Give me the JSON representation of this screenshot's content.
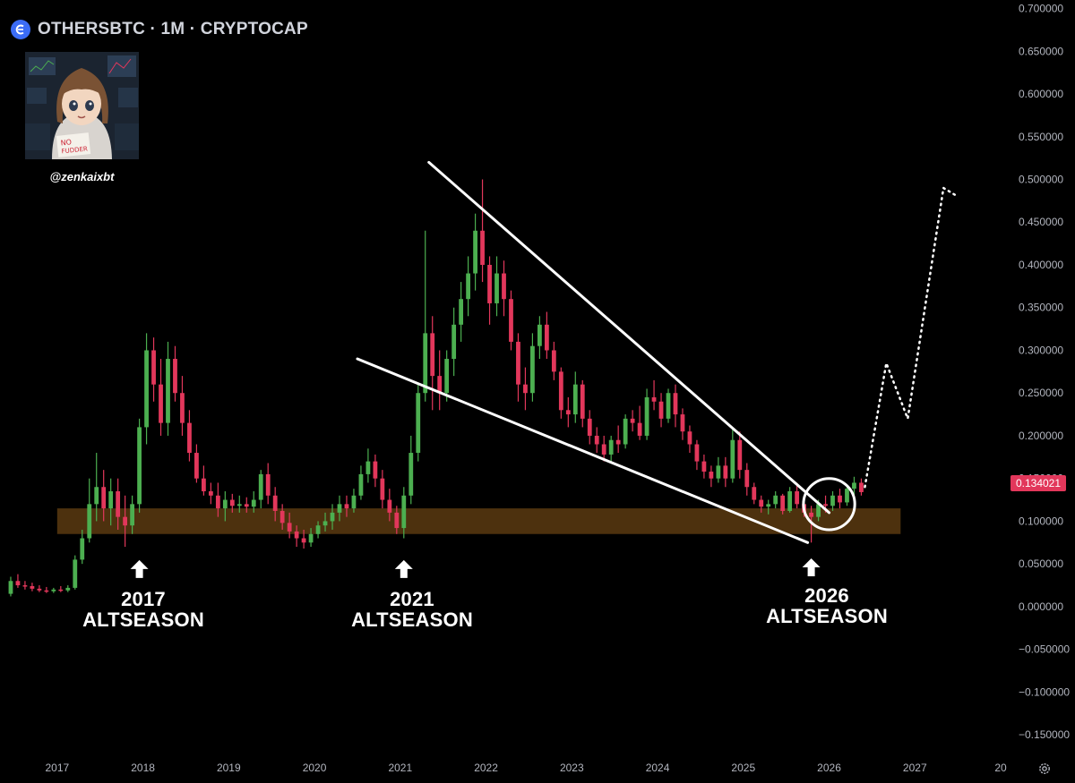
{
  "header": {
    "symbol_title": "OTHERSBTC · 1M · CRYPTOCAP"
  },
  "author": {
    "handle": "@zenkaixbt",
    "avatar_sign_text": "NO FUDDER"
  },
  "annotations": [
    {
      "year": "2017",
      "label": "ALTSEASON"
    },
    {
      "year": "2021",
      "label": "ALTSEASON"
    },
    {
      "year": "2026",
      "label": "ALTSEASON"
    }
  ],
  "price_axis": {
    "ticks": [
      "0.700000",
      "0.650000",
      "0.600000",
      "0.550000",
      "0.500000",
      "0.450000",
      "0.400000",
      "0.350000",
      "0.300000",
      "0.250000",
      "0.200000",
      "0.150000",
      "0.100000",
      "0.050000",
      "0.000000",
      "−0.050000",
      "−0.100000",
      "−0.150000"
    ],
    "current_price_label": "0.134021"
  },
  "time_axis": {
    "ticks": [
      "2017",
      "2018",
      "2019",
      "2020",
      "2021",
      "2022",
      "2023",
      "2024",
      "2025",
      "2026",
      "2027",
      "20"
    ]
  },
  "icons": {
    "logo": "cryptocap-logo-icon",
    "settings": "gear-icon",
    "arrow": "up-arrow-icon"
  },
  "colors": {
    "background": "#000000",
    "up_candle": "#4caf50",
    "down_candle": "#e2375b",
    "support_zone": "#5a3a10",
    "trendline": "#ffffff",
    "price_badge": "#e2375b"
  },
  "chart_data": {
    "type": "candlestick",
    "title": "OTHERSBTC · 1M · CRYPTOCAP",
    "interval": "1M",
    "ylim": [
      -0.175,
      0.71
    ],
    "xlim": [
      "2016-05",
      "2028-02"
    ],
    "candles": [
      [
        "2016-06",
        0.015,
        0.035,
        0.012,
        0.03
      ],
      [
        "2016-07",
        0.03,
        0.038,
        0.022,
        0.025
      ],
      [
        "2016-08",
        0.025,
        0.03,
        0.02,
        0.024
      ],
      [
        "2016-09",
        0.024,
        0.028,
        0.018,
        0.021
      ],
      [
        "2016-10",
        0.021,
        0.025,
        0.017,
        0.019
      ],
      [
        "2016-11",
        0.019,
        0.023,
        0.016,
        0.018
      ],
      [
        "2016-12",
        0.018,
        0.022,
        0.016,
        0.02
      ],
      [
        "2017-01",
        0.02,
        0.024,
        0.017,
        0.019
      ],
      [
        "2017-02",
        0.019,
        0.025,
        0.017,
        0.022
      ],
      [
        "2017-03",
        0.022,
        0.06,
        0.02,
        0.055
      ],
      [
        "2017-04",
        0.055,
        0.09,
        0.05,
        0.08
      ],
      [
        "2017-05",
        0.08,
        0.15,
        0.075,
        0.12
      ],
      [
        "2017-06",
        0.12,
        0.18,
        0.1,
        0.14
      ],
      [
        "2017-07",
        0.14,
        0.16,
        0.1,
        0.115
      ],
      [
        "2017-08",
        0.115,
        0.15,
        0.095,
        0.135
      ],
      [
        "2017-09",
        0.135,
        0.15,
        0.09,
        0.105
      ],
      [
        "2017-10",
        0.105,
        0.13,
        0.07,
        0.095
      ],
      [
        "2017-11",
        0.095,
        0.13,
        0.085,
        0.12
      ],
      [
        "2017-12",
        0.12,
        0.22,
        0.11,
        0.21
      ],
      [
        "2018-01",
        0.21,
        0.32,
        0.19,
        0.3
      ],
      [
        "2018-02",
        0.3,
        0.315,
        0.24,
        0.26
      ],
      [
        "2018-03",
        0.26,
        0.29,
        0.2,
        0.215
      ],
      [
        "2018-04",
        0.215,
        0.31,
        0.2,
        0.29
      ],
      [
        "2018-05",
        0.29,
        0.305,
        0.24,
        0.25
      ],
      [
        "2018-06",
        0.25,
        0.27,
        0.2,
        0.215
      ],
      [
        "2018-07",
        0.215,
        0.23,
        0.17,
        0.18
      ],
      [
        "2018-08",
        0.18,
        0.19,
        0.145,
        0.15
      ],
      [
        "2018-09",
        0.15,
        0.165,
        0.13,
        0.135
      ],
      [
        "2018-10",
        0.135,
        0.145,
        0.12,
        0.13
      ],
      [
        "2018-11",
        0.13,
        0.145,
        0.105,
        0.115
      ],
      [
        "2018-12",
        0.115,
        0.135,
        0.1,
        0.125
      ],
      [
        "2019-01",
        0.125,
        0.132,
        0.11,
        0.118
      ],
      [
        "2019-02",
        0.118,
        0.13,
        0.11,
        0.12
      ],
      [
        "2019-03",
        0.12,
        0.128,
        0.11,
        0.117
      ],
      [
        "2019-04",
        0.117,
        0.135,
        0.11,
        0.125
      ],
      [
        "2019-05",
        0.125,
        0.16,
        0.115,
        0.155
      ],
      [
        "2019-06",
        0.155,
        0.168,
        0.12,
        0.13
      ],
      [
        "2019-07",
        0.13,
        0.14,
        0.1,
        0.112
      ],
      [
        "2019-08",
        0.112,
        0.12,
        0.09,
        0.098
      ],
      [
        "2019-09",
        0.098,
        0.11,
        0.08,
        0.088
      ],
      [
        "2019-10",
        0.088,
        0.095,
        0.07,
        0.08
      ],
      [
        "2019-11",
        0.08,
        0.09,
        0.068,
        0.075
      ],
      [
        "2019-12",
        0.075,
        0.092,
        0.07,
        0.085
      ],
      [
        "2020-01",
        0.085,
        0.1,
        0.08,
        0.095
      ],
      [
        "2020-02",
        0.095,
        0.11,
        0.088,
        0.1
      ],
      [
        "2020-03",
        0.1,
        0.12,
        0.09,
        0.11
      ],
      [
        "2020-04",
        0.11,
        0.13,
        0.1,
        0.12
      ],
      [
        "2020-05",
        0.12,
        0.13,
        0.105,
        0.115
      ],
      [
        "2020-06",
        0.115,
        0.138,
        0.11,
        0.13
      ],
      [
        "2020-07",
        0.13,
        0.165,
        0.125,
        0.155
      ],
      [
        "2020-08",
        0.155,
        0.185,
        0.145,
        0.17
      ],
      [
        "2020-09",
        0.17,
        0.178,
        0.14,
        0.15
      ],
      [
        "2020-10",
        0.15,
        0.16,
        0.115,
        0.125
      ],
      [
        "2020-11",
        0.125,
        0.138,
        0.1,
        0.11
      ],
      [
        "2020-12",
        0.11,
        0.118,
        0.085,
        0.092
      ],
      [
        "2021-01",
        0.092,
        0.14,
        0.08,
        0.13
      ],
      [
        "2021-02",
        0.13,
        0.2,
        0.12,
        0.18
      ],
      [
        "2021-03",
        0.18,
        0.26,
        0.17,
        0.25
      ],
      [
        "2021-04",
        0.25,
        0.44,
        0.24,
        0.32
      ],
      [
        "2021-05",
        0.32,
        0.34,
        0.23,
        0.27
      ],
      [
        "2021-06",
        0.27,
        0.3,
        0.23,
        0.25
      ],
      [
        "2021-07",
        0.25,
        0.3,
        0.24,
        0.29
      ],
      [
        "2021-08",
        0.29,
        0.35,
        0.27,
        0.33
      ],
      [
        "2021-09",
        0.33,
        0.38,
        0.31,
        0.36
      ],
      [
        "2021-10",
        0.36,
        0.41,
        0.34,
        0.39
      ],
      [
        "2021-11",
        0.39,
        0.46,
        0.37,
        0.44
      ],
      [
        "2021-12",
        0.44,
        0.5,
        0.38,
        0.4
      ],
      [
        "2022-01",
        0.4,
        0.41,
        0.33,
        0.355
      ],
      [
        "2022-02",
        0.355,
        0.41,
        0.34,
        0.39
      ],
      [
        "2022-03",
        0.39,
        0.405,
        0.34,
        0.36
      ],
      [
        "2022-04",
        0.36,
        0.37,
        0.3,
        0.31
      ],
      [
        "2022-05",
        0.31,
        0.32,
        0.24,
        0.26
      ],
      [
        "2022-06",
        0.26,
        0.28,
        0.23,
        0.25
      ],
      [
        "2022-07",
        0.25,
        0.32,
        0.24,
        0.305
      ],
      [
        "2022-08",
        0.305,
        0.34,
        0.29,
        0.33
      ],
      [
        "2022-09",
        0.33,
        0.345,
        0.29,
        0.3
      ],
      [
        "2022-10",
        0.3,
        0.31,
        0.265,
        0.275
      ],
      [
        "2022-11",
        0.275,
        0.28,
        0.22,
        0.23
      ],
      [
        "2022-12",
        0.23,
        0.245,
        0.21,
        0.225
      ],
      [
        "2023-01",
        0.225,
        0.275,
        0.215,
        0.26
      ],
      [
        "2023-02",
        0.26,
        0.265,
        0.21,
        0.22
      ],
      [
        "2023-03",
        0.22,
        0.23,
        0.19,
        0.2
      ],
      [
        "2023-04",
        0.2,
        0.21,
        0.18,
        0.19
      ],
      [
        "2023-05",
        0.19,
        0.2,
        0.17,
        0.178
      ],
      [
        "2023-06",
        0.178,
        0.2,
        0.17,
        0.195
      ],
      [
        "2023-07",
        0.195,
        0.212,
        0.18,
        0.19
      ],
      [
        "2023-08",
        0.19,
        0.225,
        0.185,
        0.22
      ],
      [
        "2023-09",
        0.22,
        0.23,
        0.205,
        0.215
      ],
      [
        "2023-10",
        0.215,
        0.235,
        0.195,
        0.2
      ],
      [
        "2023-11",
        0.2,
        0.255,
        0.195,
        0.245
      ],
      [
        "2023-12",
        0.245,
        0.265,
        0.23,
        0.24
      ],
      [
        "2024-01",
        0.24,
        0.25,
        0.21,
        0.22
      ],
      [
        "2024-02",
        0.22,
        0.255,
        0.215,
        0.25
      ],
      [
        "2024-03",
        0.25,
        0.26,
        0.21,
        0.225
      ],
      [
        "2024-04",
        0.225,
        0.232,
        0.195,
        0.205
      ],
      [
        "2024-05",
        0.205,
        0.212,
        0.18,
        0.19
      ],
      [
        "2024-06",
        0.19,
        0.195,
        0.16,
        0.17
      ],
      [
        "2024-07",
        0.17,
        0.178,
        0.15,
        0.158
      ],
      [
        "2024-08",
        0.158,
        0.165,
        0.14,
        0.15
      ],
      [
        "2024-09",
        0.15,
        0.175,
        0.145,
        0.165
      ],
      [
        "2024-10",
        0.165,
        0.175,
        0.14,
        0.15
      ],
      [
        "2024-11",
        0.15,
        0.21,
        0.145,
        0.195
      ],
      [
        "2024-12",
        0.195,
        0.205,
        0.15,
        0.16
      ],
      [
        "2025-01",
        0.16,
        0.168,
        0.13,
        0.14
      ],
      [
        "2025-02",
        0.14,
        0.145,
        0.12,
        0.125
      ],
      [
        "2025-03",
        0.125,
        0.13,
        0.11,
        0.117
      ],
      [
        "2025-04",
        0.117,
        0.125,
        0.108,
        0.12
      ],
      [
        "2025-05",
        0.12,
        0.135,
        0.115,
        0.13
      ],
      [
        "2025-06",
        0.13,
        0.132,
        0.108,
        0.112
      ],
      [
        "2025-07",
        0.112,
        0.14,
        0.11,
        0.135
      ],
      [
        "2025-08",
        0.135,
        0.145,
        0.115,
        0.12
      ],
      [
        "2025-09",
        0.12,
        0.13,
        0.105,
        0.11
      ],
      [
        "2025-10",
        0.11,
        0.118,
        0.075,
        0.105
      ],
      [
        "2025-11",
        0.105,
        0.125,
        0.1,
        0.12
      ],
      [
        "2025-12",
        0.12,
        0.13,
        0.11,
        0.118
      ],
      [
        "2026-01",
        0.118,
        0.135,
        0.112,
        0.13
      ],
      [
        "2026-02",
        0.13,
        0.138,
        0.115,
        0.122
      ],
      [
        "2026-03",
        0.122,
        0.14,
        0.118,
        0.138
      ],
      [
        "2026-04",
        0.138,
        0.152,
        0.13,
        0.145
      ],
      [
        "2026-05",
        0.145,
        0.15,
        0.13,
        0.134
      ]
    ],
    "support_zone": {
      "y_low": 0.085,
      "y_high": 0.115,
      "x_start": "2017-01",
      "x_end": "2026-11"
    },
    "trendlines": [
      {
        "from": [
          "2021-05",
          0.52
        ],
        "to": [
          "2026-01",
          0.11
        ]
      },
      {
        "from": [
          "2020-07",
          0.29
        ],
        "to": [
          "2025-10",
          0.075
        ]
      }
    ],
    "circle_marker": {
      "center": [
        "2026-01",
        0.12
      ],
      "radius_value": 0.03
    },
    "projection": [
      [
        "2026-06",
        0.14
      ],
      [
        "2026-09",
        0.285
      ],
      [
        "2026-12",
        0.22
      ],
      [
        "2027-05",
        0.49
      ],
      [
        "2027-07",
        0.48
      ]
    ],
    "arrows": [
      {
        "x": "2017-12",
        "y": 0.043
      },
      {
        "x": "2021-01",
        "y": 0.043
      },
      {
        "x": "2025-10",
        "y": 0.045
      }
    ]
  }
}
